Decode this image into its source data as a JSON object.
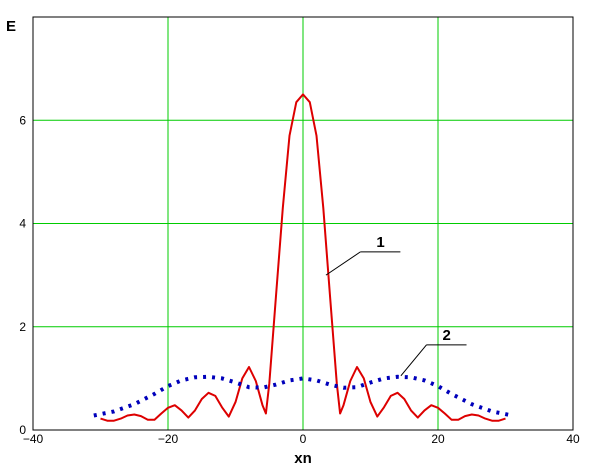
{
  "chart_data": {
    "type": "line",
    "xlabel": "xn",
    "ylabel": "E",
    "xlim": [
      -40,
      40
    ],
    "ylim": [
      0,
      8
    ],
    "x_ticks": [
      -40,
      -20,
      0,
      20,
      40
    ],
    "y_ticks": [
      0,
      2,
      4,
      6
    ],
    "x_tick_labels": [
      "−40",
      "−20",
      "0",
      "20",
      "40"
    ],
    "y_tick_labels": [
      "0",
      "2",
      "4",
      "6"
    ],
    "grid": true,
    "grid_color": "#00cc00",
    "series": [
      {
        "label": "1",
        "color": "#dd0000",
        "style": "solid",
        "x": [
          -30,
          -29,
          -28,
          -27,
          -26,
          -25,
          -24,
          -23,
          -22,
          -21,
          -20,
          -19,
          -18,
          -17,
          -16,
          -15,
          -14,
          -13,
          -12,
          -11,
          -10,
          -9,
          -8,
          -7,
          -6,
          -5.5,
          -5,
          -4,
          -3,
          -2,
          -1,
          0,
          1,
          2,
          3,
          4,
          5,
          5.5,
          6,
          7,
          8,
          9,
          10,
          11,
          12,
          13,
          14,
          15,
          16,
          17,
          18,
          19,
          20,
          21,
          22,
          23,
          24,
          25,
          26,
          27,
          28,
          29,
          30
        ],
        "values": [
          0.22,
          0.18,
          0.18,
          0.22,
          0.28,
          0.3,
          0.27,
          0.2,
          0.2,
          0.32,
          0.43,
          0.48,
          0.38,
          0.24,
          0.38,
          0.6,
          0.72,
          0.66,
          0.44,
          0.26,
          0.54,
          1.0,
          1.22,
          0.95,
          0.48,
          0.32,
          0.9,
          2.6,
          4.3,
          5.7,
          6.35,
          6.5,
          6.35,
          5.7,
          4.3,
          2.6,
          0.9,
          0.32,
          0.48,
          0.95,
          1.22,
          1.0,
          0.54,
          0.26,
          0.44,
          0.66,
          0.72,
          0.6,
          0.38,
          0.24,
          0.38,
          0.48,
          0.43,
          0.32,
          0.2,
          0.2,
          0.27,
          0.3,
          0.28,
          0.22,
          0.18,
          0.18,
          0.22
        ]
      },
      {
        "label": "2",
        "color": "#0000bb",
        "style": "dotted",
        "x": [
          -31,
          -28,
          -25,
          -22,
          -20,
          -18,
          -16,
          -14,
          -12,
          -10,
          -8,
          -6,
          -4,
          -2,
          0,
          2,
          4,
          6,
          8,
          10,
          12,
          14,
          16,
          18,
          20,
          22,
          25,
          28,
          31
        ],
        "values": [
          0.28,
          0.36,
          0.5,
          0.7,
          0.85,
          0.96,
          1.02,
          1.03,
          1.0,
          0.92,
          0.83,
          0.82,
          0.88,
          0.96,
          1.0,
          0.96,
          0.88,
          0.82,
          0.83,
          0.92,
          1.0,
          1.03,
          1.02,
          0.96,
          0.85,
          0.7,
          0.5,
          0.36,
          0.28
        ]
      }
    ],
    "annotations": [
      {
        "text": "1",
        "target_series": 0,
        "target_x": 3.4,
        "target_y": 3.0,
        "label_x": 8.5,
        "label_y": 3.45
      },
      {
        "text": "2",
        "target_series": 1,
        "target_x": 14.5,
        "target_y": 1.05,
        "label_x": 18.3,
        "label_y": 1.65
      }
    ]
  }
}
